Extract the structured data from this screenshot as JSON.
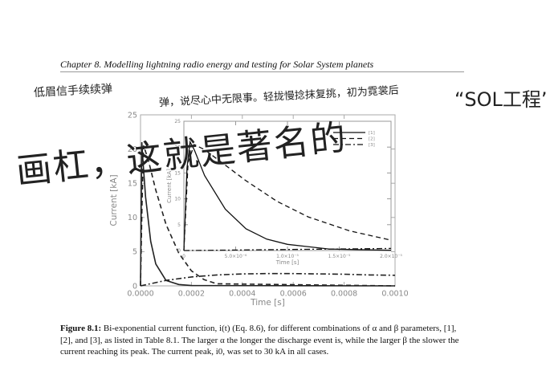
{
  "header": {
    "chapter": "Chapter 8.",
    "title": "Modelling lightning radio energy and testing for Solar System planets"
  },
  "handwriting": {
    "line1": "低眉信手续续弹",
    "line2": "弹，说尽心中无限事。轻拢慢捻抹复挑，初为霓裳后",
    "line3": "画杠，这就是著名的",
    "line4": "“SOL工程”。"
  },
  "caption": {
    "label": "Figure 8.1:",
    "text": "Bi-exponential current function, i(t) (Eq. 8.6), for different combinations of α and β parameters, [1], [2], and [3], as listed in Table 8.1. The larger α the longer the discharge event is, while the larger β the slower the current reaching its peak. The current peak, i0, was set to 30 kA in all cases."
  },
  "chart_data": [
    {
      "type": "line",
      "xlabel": "Time [s]",
      "ylabel": "Current [kA]",
      "xlim": [
        0,
        0.001
      ],
      "ylim": [
        0,
        25
      ],
      "x_ticks": [
        "0.0000",
        "0.0002",
        "0.0004",
        "0.0006",
        "0.0008",
        "0.0010"
      ],
      "y_ticks": [
        "0",
        "5",
        "10",
        "15",
        "20",
        "25"
      ],
      "series": [
        {
          "name": "[1]",
          "style": "solid",
          "x": [
            0,
            5e-06,
            1e-05,
            2e-05,
            4e-05,
            6e-05,
            0.0001,
            0.00015,
            0.0002,
            0.001
          ],
          "y": [
            0,
            21.0,
            18.0,
            13.0,
            6.5,
            3.2,
            0.8,
            0.2,
            0.05,
            0
          ]
        },
        {
          "name": "[2]",
          "style": "dashed",
          "x": [
            0,
            6e-06,
            1.2e-05,
            3e-05,
            6e-05,
            0.0001,
            0.00015,
            0.0002,
            0.00025,
            0.0003,
            0.001
          ],
          "y": [
            0,
            12.0,
            20.5,
            18.5,
            14.0,
            9.0,
            4.8,
            2.2,
            0.9,
            0.3,
            0
          ]
        },
        {
          "name": "[3]",
          "style": "dashdot",
          "x": [
            0,
            0.0001,
            0.0002,
            0.0003,
            0.0004,
            0.0005,
            0.0006,
            0.0007,
            0.0008,
            0.0009,
            0.001
          ],
          "y": [
            0,
            0.8,
            1.3,
            1.6,
            1.75,
            1.8,
            1.8,
            1.75,
            1.7,
            1.6,
            1.55
          ]
        }
      ]
    },
    {
      "type": "line",
      "xlabel": "Time [s]",
      "ylabel": "Current [kA]",
      "xlim": [
        0,
        2e-05
      ],
      "ylim": [
        0,
        25
      ],
      "x_ticks": [
        "0",
        "5.0×10⁻⁶",
        "1.0×10⁻⁵",
        "1.5×10⁻⁵",
        "2.0×10⁻⁵"
      ],
      "y_ticks": [
        "0",
        "5",
        "10",
        "15",
        "20",
        "25"
      ],
      "legend": "top-right",
      "series": [
        {
          "name": "[1]",
          "style": "solid",
          "x": [
            0,
            3e-07,
            6e-07,
            1e-06,
            2e-06,
            4e-06,
            6e-06,
            8e-06,
            1e-05,
            1.4e-05,
            2e-05
          ],
          "y": [
            0,
            16.0,
            21.0,
            19.5,
            14.5,
            8.0,
            4.2,
            2.2,
            1.2,
            0.3,
            0.05
          ]
        },
        {
          "name": "[2]",
          "style": "dashed",
          "x": [
            0,
            4e-07,
            1e-06,
            2e-06,
            4e-06,
            6e-06,
            9e-06,
            1.2e-05,
            1.6e-05,
            2e-05
          ],
          "y": [
            0,
            17.0,
            20.5,
            19.5,
            16.5,
            13.5,
            9.5,
            6.5,
            3.8,
            2.0
          ]
        },
        {
          "name": "[3]",
          "style": "dashdot",
          "x": [
            0,
            5e-06,
            1e-05,
            1.5e-05,
            2e-05
          ],
          "y": [
            0,
            0.1,
            0.2,
            0.3,
            0.4
          ]
        }
      ]
    }
  ]
}
